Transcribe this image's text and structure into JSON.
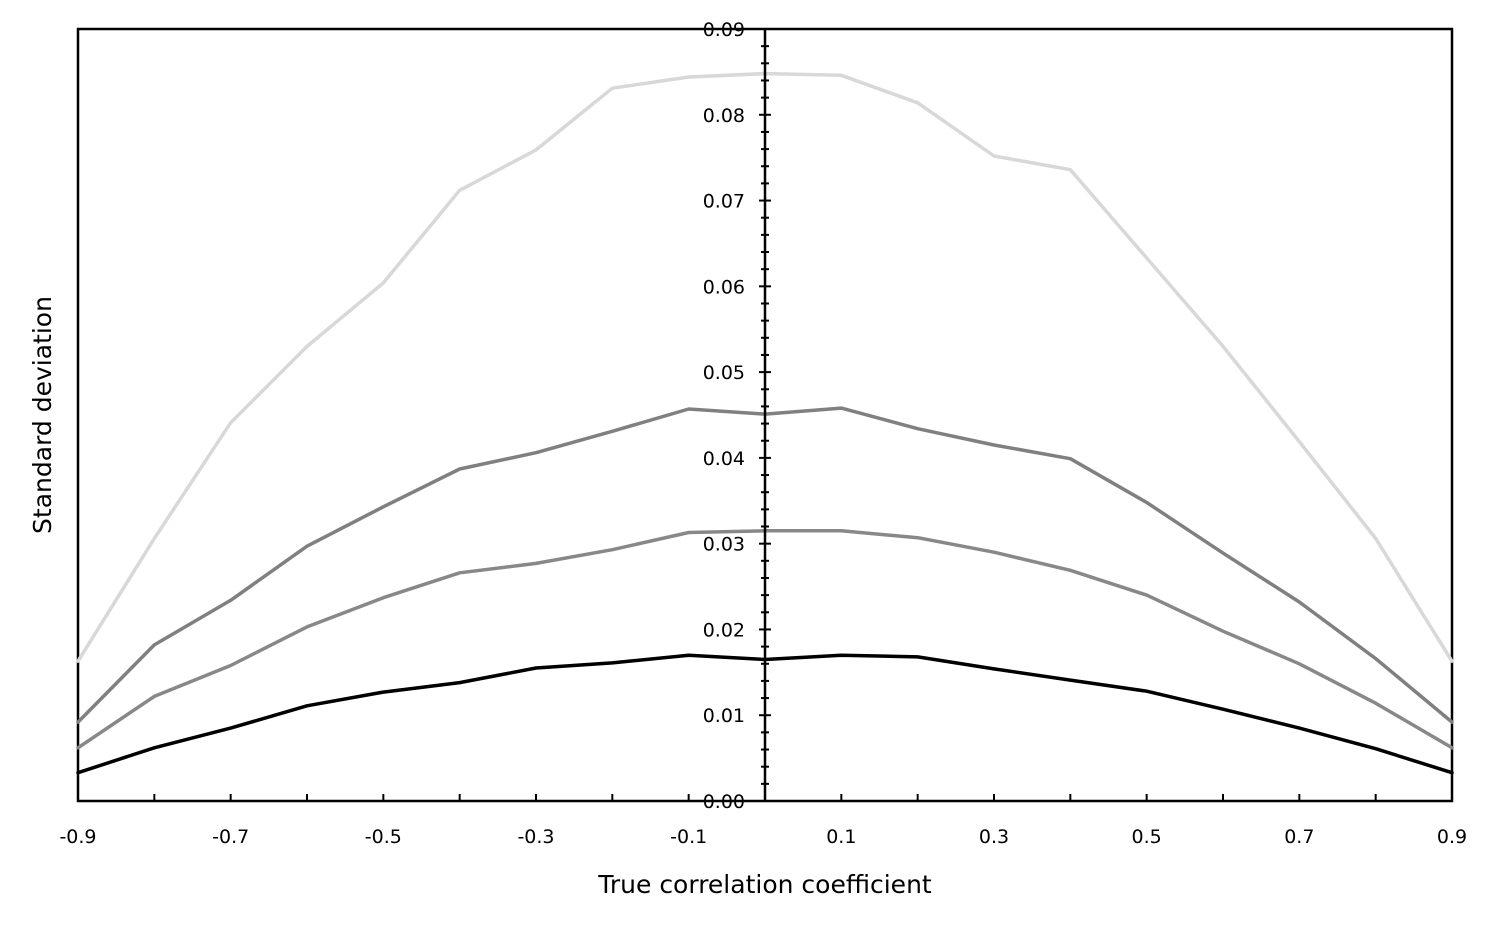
{
  "chart_data": {
    "type": "line",
    "title": "",
    "xlabel": "True correlation coefficient",
    "ylabel": "Standard deviation",
    "xlim": [
      -0.9,
      0.9
    ],
    "ylim": [
      0,
      0.09
    ],
    "x_tick_labels": [
      "-0.9",
      "-0.7",
      "-0.5",
      "-0.3",
      "-0.1",
      "0.1",
      "0.3",
      "0.5",
      "0.7",
      "0.9"
    ],
    "y_tick_labels": [
      "0.00",
      "0.01",
      "0.02",
      "0.03",
      "0.04",
      "0.05",
      "0.06",
      "0.07",
      "0.08",
      "0.09"
    ],
    "grid": false,
    "legend": "none",
    "x": [
      -0.9,
      -0.8,
      -0.7,
      -0.6,
      -0.5,
      -0.4,
      -0.3,
      -0.2,
      -0.1,
      0.0,
      0.1,
      0.2,
      0.3,
      0.4,
      0.5,
      0.6,
      0.7,
      0.8,
      0.9
    ],
    "series": [
      {
        "color": "#d8d8d8",
        "values": [
          0.0163,
          0.0306,
          0.0441,
          0.053,
          0.0604,
          0.0712,
          0.0759,
          0.0831,
          0.0844,
          0.0848,
          0.0846,
          0.0814,
          0.0752,
          0.0736,
          0.0633,
          0.053,
          0.0419,
          0.0306,
          0.0163
        ]
      },
      {
        "color": "#808080",
        "values": [
          0.0092,
          0.0182,
          0.0234,
          0.0297,
          0.0343,
          0.0387,
          0.0406,
          0.0431,
          0.0457,
          0.0451,
          0.0458,
          0.0434,
          0.0415,
          0.0399,
          0.0348,
          0.0289,
          0.0232,
          0.0166,
          0.0092
        ]
      },
      {
        "color": "#888888",
        "values": [
          0.0062,
          0.0122,
          0.0158,
          0.0203,
          0.0237,
          0.0266,
          0.0277,
          0.0293,
          0.0313,
          0.0315,
          0.0315,
          0.0307,
          0.029,
          0.0269,
          0.024,
          0.0198,
          0.016,
          0.0114,
          0.0062
        ]
      },
      {
        "color": "#000000",
        "values": [
          0.0033,
          0.0062,
          0.0085,
          0.0111,
          0.0127,
          0.0138,
          0.0155,
          0.0161,
          0.017,
          0.0165,
          0.017,
          0.0168,
          0.0154,
          0.0141,
          0.0128,
          0.0107,
          0.0085,
          0.0061,
          0.0033
        ]
      }
    ]
  }
}
